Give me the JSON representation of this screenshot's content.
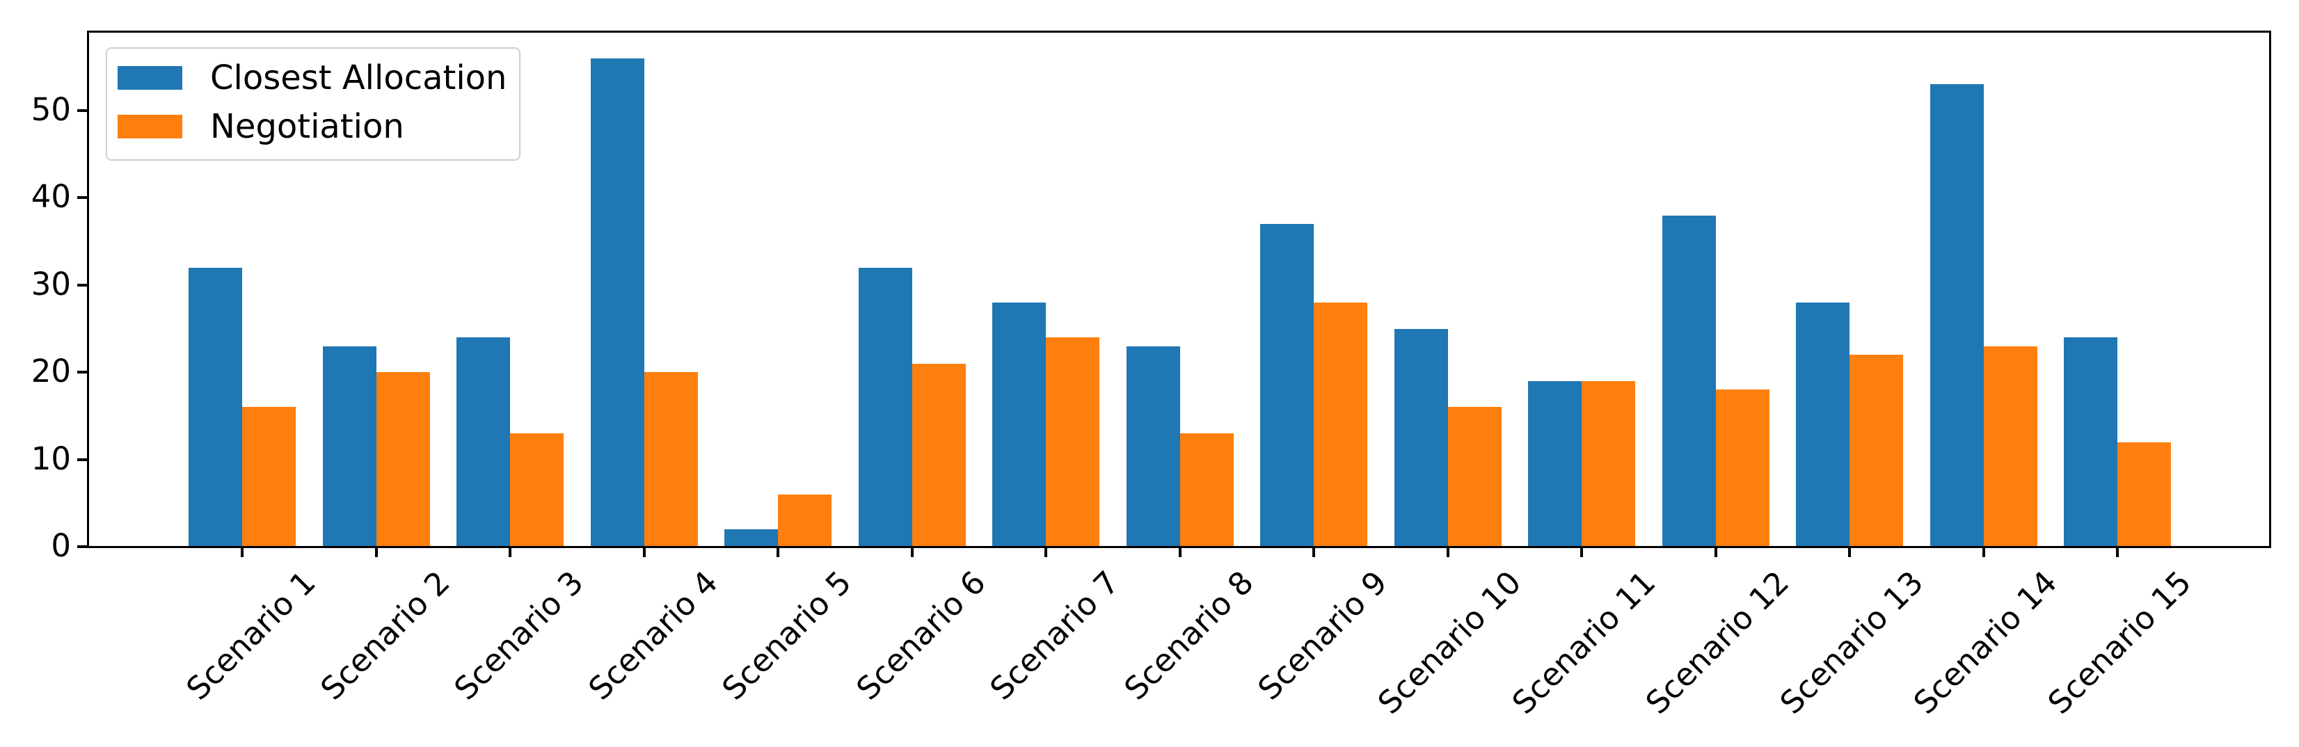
{
  "chart_data": {
    "type": "bar",
    "title": "",
    "xlabel": "",
    "ylabel": "",
    "categories": [
      "Scenario 1",
      "Scenario 2",
      "Scenario 3",
      "Scenario 4",
      "Scenario 5",
      "Scenario 6",
      "Scenario 7",
      "Scenario 8",
      "Scenario 9",
      "Scenario 10",
      "Scenario 11",
      "Scenario 12",
      "Scenario 13",
      "Scenario 14",
      "Scenario 15"
    ],
    "series": [
      {
        "name": "Closest Allocation",
        "color": "#1f77b4",
        "values": [
          32,
          23,
          24,
          56,
          2,
          32,
          28,
          23,
          37,
          25,
          19,
          38,
          28,
          53,
          24
        ]
      },
      {
        "name": "Negotiation",
        "color": "#ff7f0e",
        "values": [
          16,
          20,
          13,
          20,
          6,
          21,
          24,
          13,
          28,
          16,
          19,
          18,
          22,
          23,
          12
        ]
      }
    ],
    "yticks": [
      0,
      10,
      20,
      30,
      40,
      50
    ],
    "ylim": [
      0,
      59.1
    ],
    "grid": false,
    "legend_position": "upper left",
    "axis_color": "#000000",
    "text_color": "#000000",
    "legend_border_color": "#cfcfcf",
    "background_color": "#ffffff"
  }
}
